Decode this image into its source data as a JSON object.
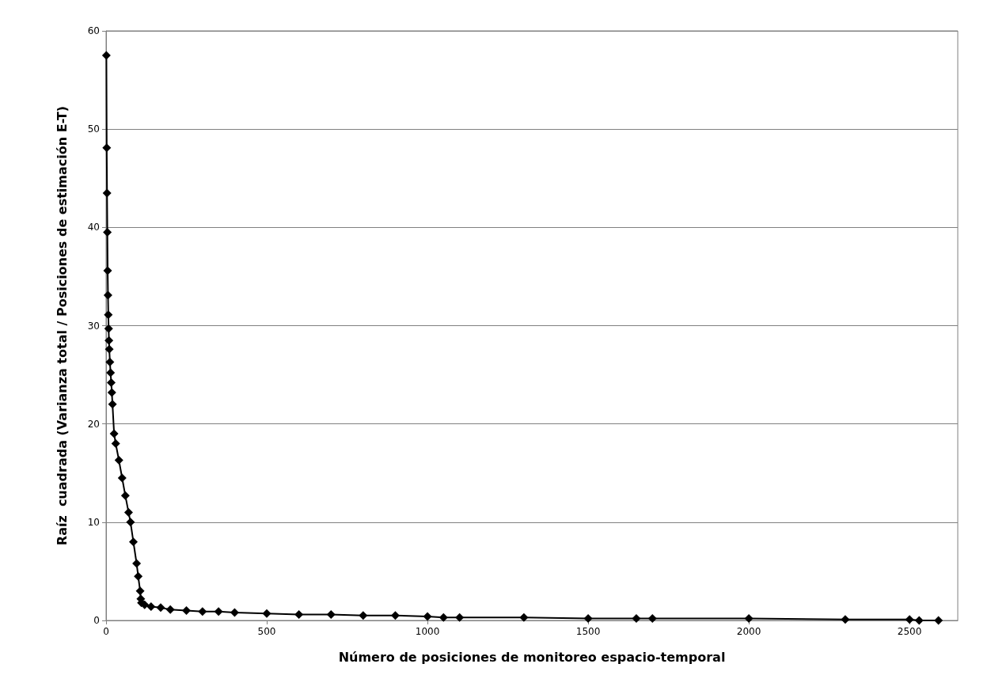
{
  "chart_data": {
    "type": "line",
    "xlabel": "Número de posiciones de monitoreo espacio-temporal",
    "ylabel": "Raíz  cuadrada (Varianza total / Posiciones de estimación E-T)",
    "xlim": [
      0,
      2650
    ],
    "xticks": [
      0,
      500,
      1000,
      1500,
      2000,
      2500
    ],
    "ylim": [
      0,
      60
    ],
    "yticks": [
      0,
      10,
      20,
      30,
      40,
      50,
      60
    ],
    "grid": "y",
    "marker": "diamond",
    "line_style": "solid",
    "series": [
      {
        "color": "#000000",
        "x": [
          1,
          2,
          3,
          4,
          5,
          6,
          7,
          8,
          9,
          10,
          12,
          14,
          16,
          18,
          20,
          25,
          30,
          40,
          50,
          60,
          70,
          76,
          85,
          95,
          100,
          106,
          108,
          110,
          120,
          140,
          170,
          200,
          250,
          300,
          350,
          400,
          500,
          600,
          700,
          800,
          900,
          1000,
          1050,
          1100,
          1300,
          1500,
          1650,
          1700,
          2000,
          2300,
          2500,
          2530,
          2590
        ],
        "values": [
          57.5,
          48.1,
          43.5,
          39.5,
          35.6,
          33.1,
          31.1,
          29.7,
          28.5,
          27.6,
          26.3,
          25.2,
          24.2,
          23.2,
          22.0,
          19.0,
          18.0,
          16.3,
          14.5,
          12.7,
          11.0,
          10.0,
          8.0,
          5.8,
          4.5,
          3.0,
          2.2,
          1.8,
          1.6,
          1.4,
          1.3,
          1.1,
          1.0,
          0.9,
          0.9,
          0.8,
          0.7,
          0.6,
          0.6,
          0.5,
          0.5,
          0.4,
          0.3,
          0.3,
          0.3,
          0.2,
          0.2,
          0.2,
          0.2,
          0.1,
          0.1,
          0,
          0
        ]
      }
    ]
  }
}
